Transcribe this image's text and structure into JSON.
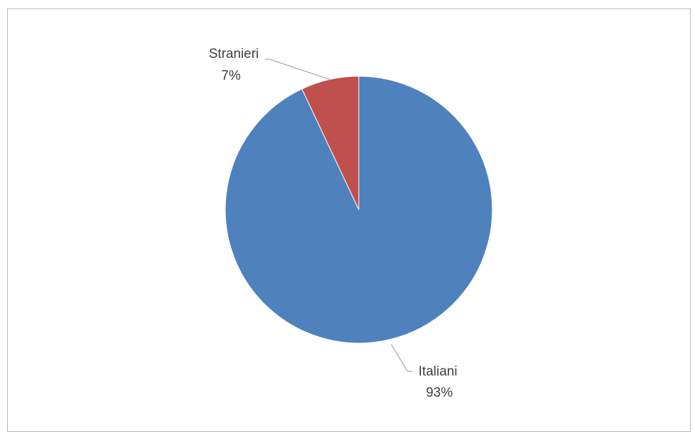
{
  "chart_data": {
    "type": "pie",
    "title": "",
    "slices": [
      {
        "label": "Italiani",
        "value": 93,
        "value_label": "93%",
        "color": "#4F81BD"
      },
      {
        "label": "Stranieri",
        "value": 7,
        "value_label": "7%",
        "color": "#C0504D"
      }
    ],
    "start_angle_deg": 0,
    "direction": "clockwise",
    "data_labels": "outside-with-leader-lines",
    "legend": "none",
    "leader_line_color": "#A6A6A6"
  }
}
